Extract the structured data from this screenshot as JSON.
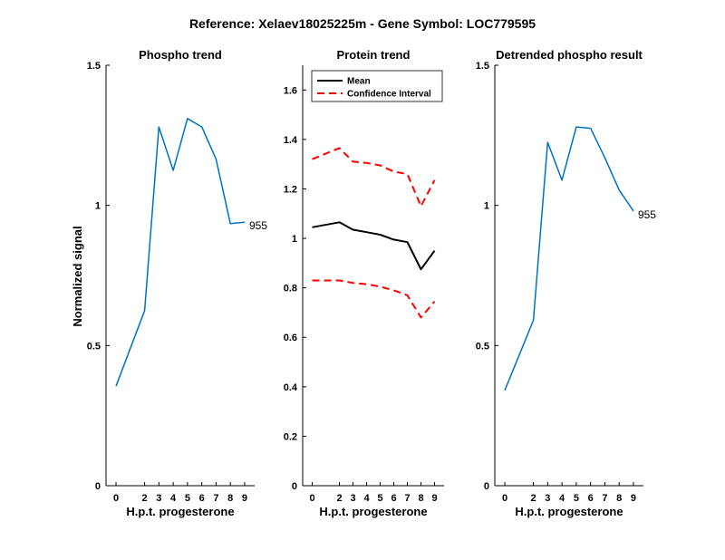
{
  "figure": {
    "suptitle": "Reference:  Xelaev18025225m - Gene Symbol:  LOC779595",
    "ylabel": "Normalized signal"
  },
  "chart_data": [
    {
      "type": "line",
      "title": "Phospho trend",
      "xlabel": "H.p.t. progesterone",
      "ylabel": "Normalized signal",
      "x": [
        0,
        2,
        3,
        4,
        5,
        6,
        7,
        8,
        9
      ],
      "xlim": [
        -0.7,
        9.7
      ],
      "ylim": [
        0,
        1.5
      ],
      "yticks": [
        0,
        0.5,
        1,
        1.5
      ],
      "ytick_labels": [
        "0",
        "0.5",
        "1",
        "1.5"
      ],
      "series": [
        {
          "values": [
            0.355,
            0.625,
            1.28,
            1.125,
            1.31,
            1.28,
            1.165,
            0.935,
            0.94
          ],
          "color": "#0072bd",
          "dashed": false,
          "width": 1.5
        }
      ],
      "end_label": "955"
    },
    {
      "type": "line",
      "title": "Protein trend",
      "xlabel": "H.p.t. progesterone",
      "x": [
        0,
        2,
        3,
        4,
        5,
        6,
        7,
        8,
        9
      ],
      "xlim": [
        -0.7,
        9.7
      ],
      "ylim": [
        0,
        1.7
      ],
      "yticks": [
        0,
        0.2,
        0.4,
        0.6,
        0.8,
        1,
        1.2,
        1.4,
        1.6
      ],
      "ytick_labels": [
        "0",
        "0.2",
        "0.4",
        "0.6",
        "0.8",
        "1",
        "1.2",
        "1.4",
        "1.6"
      ],
      "series": [
        {
          "name": "Mean",
          "values": [
            1.045,
            1.065,
            1.035,
            1.025,
            1.015,
            0.995,
            0.985,
            0.875,
            0.95
          ],
          "color": "#000000",
          "dashed": false,
          "width": 2
        },
        {
          "name": "Confidence Interval",
          "values": [
            1.32,
            1.365,
            1.31,
            1.305,
            1.295,
            1.27,
            1.26,
            1.13,
            1.235
          ],
          "color": "#ff0000",
          "dashed": true,
          "width": 2
        },
        {
          "values": [
            0.83,
            0.83,
            0.82,
            0.815,
            0.805,
            0.79,
            0.77,
            0.68,
            0.745
          ],
          "color": "#ff0000",
          "dashed": true,
          "width": 2
        }
      ],
      "legend": {
        "placement": "top-left",
        "entries": [
          {
            "label": "Mean",
            "color": "#000000",
            "dashed": false
          },
          {
            "label": "Confidence Interval",
            "color": "#ff0000",
            "dashed": true
          }
        ]
      }
    },
    {
      "type": "line",
      "title": "Detrended phospho result",
      "xlabel": "H.p.t. progesterone",
      "x": [
        0,
        2,
        3,
        4,
        5,
        6,
        7,
        8,
        9
      ],
      "xlim": [
        -0.7,
        9.7
      ],
      "ylim": [
        0,
        1.5
      ],
      "yticks": [
        0,
        0.5,
        1,
        1.5
      ],
      "ytick_labels": [
        "0",
        "0.5",
        "1",
        "1.5"
      ],
      "series": [
        {
          "values": [
            0.34,
            0.59,
            1.225,
            1.09,
            1.28,
            1.275,
            1.17,
            1.055,
            0.98
          ],
          "color": "#0072bd",
          "dashed": false,
          "width": 1.5
        }
      ],
      "end_label": "955"
    }
  ]
}
